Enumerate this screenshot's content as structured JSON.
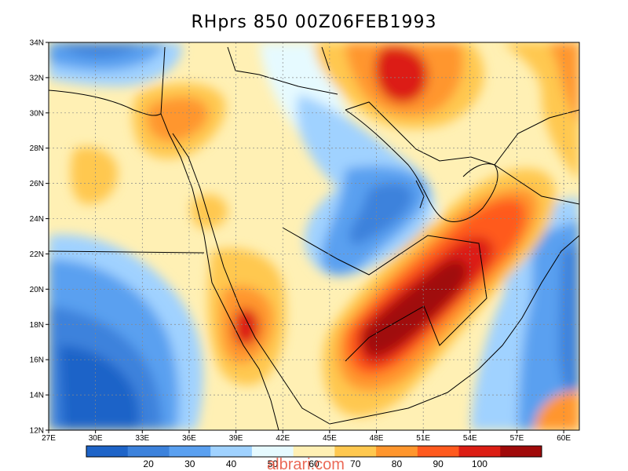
{
  "title": "RHprs 850 00Z06FEB1993",
  "lat_labels": [
    "34N",
    "32N",
    "30N",
    "28N",
    "26N",
    "24N",
    "22N",
    "20N",
    "18N",
    "16N",
    "14N",
    "12N"
  ],
  "lon_labels": [
    "27E",
    "30E",
    "33E",
    "36E",
    "39E",
    "42E",
    "45E",
    "48E",
    "51E",
    "54E",
    "57E",
    "60E"
  ],
  "colorbar": {
    "labels": [
      "20",
      "30",
      "40",
      "50",
      "60",
      "70",
      "80",
      "90",
      "100"
    ],
    "colors": [
      "#1e64c8",
      "#3c82dc",
      "#5aa0f0",
      "#a0d2ff",
      "#e6faff",
      "#fff0b4",
      "#ffc84f",
      "#ff962d",
      "#ff5a1e",
      "#dc1e14",
      "#a00a0a"
    ]
  },
  "watermark": "albrari.com",
  "chart_data": {
    "type": "heatmap",
    "title": "RHprs 850 00Z06FEB1993",
    "xlim": [
      27,
      61
    ],
    "ylim": [
      12,
      34
    ],
    "grid": true,
    "levels": [
      20,
      30,
      40,
      50,
      60,
      70,
      80,
      90,
      100
    ],
    "features": [
      {
        "name": "high-rh-band-southeast",
        "value": 100,
        "lon": 49.5,
        "lat": 18.5
      },
      {
        "name": "high-rh-north-gulf",
        "value": 90,
        "lon": 50.5,
        "lat": 32.5
      },
      {
        "name": "high-rh-red-sea",
        "value": 90,
        "lon": 40.0,
        "lat": 17.5
      },
      {
        "name": "moderate-rh-sinai",
        "value": 80,
        "lon": 35.5,
        "lat": 30.5
      },
      {
        "name": "low-rh-southwest",
        "value": 20,
        "lon": 30.5,
        "lat": 15.5
      },
      {
        "name": "low-rh-northwest",
        "value": 20,
        "lon": 30.5,
        "lat": 33.5
      },
      {
        "name": "low-rh-central-arabia",
        "value": 40,
        "lon": 48.5,
        "lat": 24.0
      }
    ]
  }
}
